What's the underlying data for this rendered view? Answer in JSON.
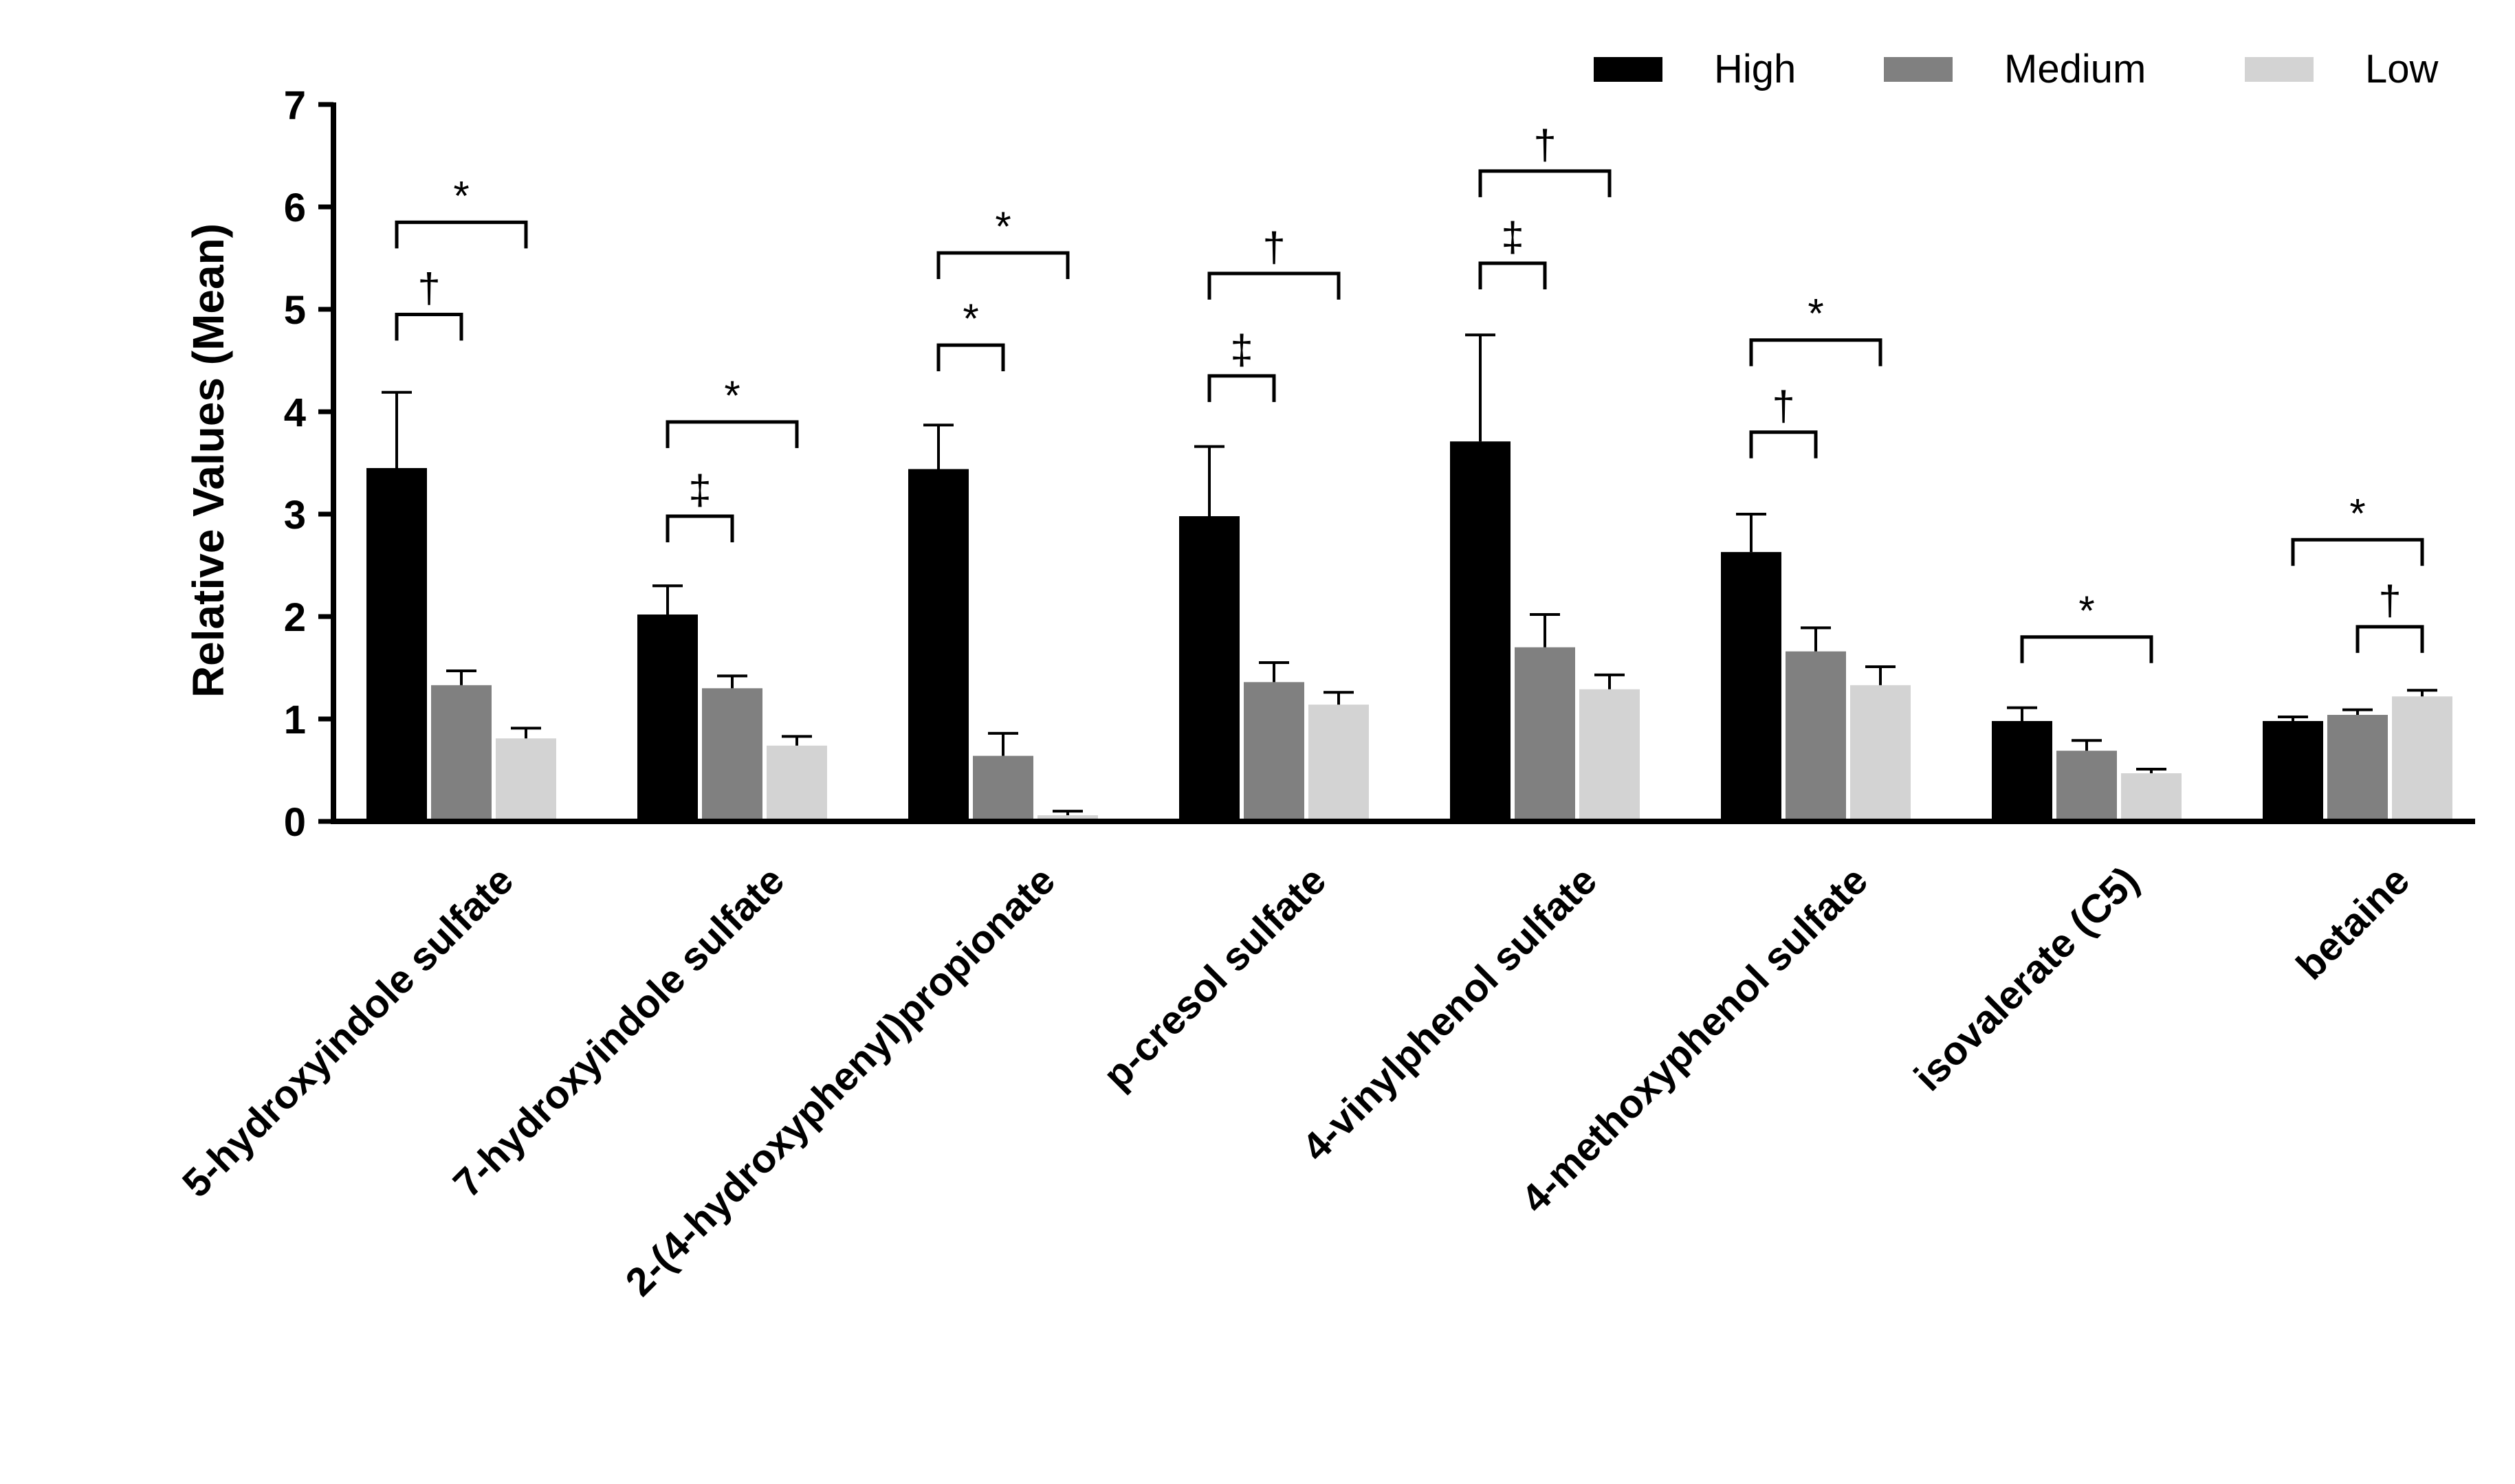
{
  "chart_data": {
    "type": "bar",
    "title": "",
    "xlabel": "",
    "ylabel": "Relative Values (Mean)",
    "ylim": [
      0,
      7
    ],
    "yticks": [
      0,
      1,
      2,
      3,
      4,
      5,
      6,
      7
    ],
    "legend_position": "top-right",
    "categories": [
      "5-hydroxyindole sulfate",
      "7-hydroxyindole sulfate",
      "2-(4-hydroxyphenyl)propionate",
      "p-cresol sulfate",
      "4-vinylphenol sulfate",
      "4-methoxyphenol sulfate",
      "isovalerate (C5)",
      "betaine"
    ],
    "series": [
      {
        "name": "High",
        "color": "#000000",
        "values": [
          3.45,
          2.02,
          3.44,
          2.98,
          3.71,
          2.63,
          0.98,
          0.98
        ],
        "errors": [
          0.74,
          0.28,
          0.43,
          0.68,
          1.04,
          0.37,
          0.13,
          0.04
        ]
      },
      {
        "name": "Medium",
        "color": "#808080",
        "values": [
          1.33,
          1.3,
          0.64,
          1.36,
          1.7,
          1.66,
          0.69,
          1.04
        ],
        "errors": [
          0.14,
          0.12,
          0.22,
          0.19,
          0.32,
          0.23,
          0.1,
          0.05
        ]
      },
      {
        "name": "Low",
        "color": "#d3d3d3",
        "values": [
          0.81,
          0.74,
          0.06,
          1.14,
          1.29,
          1.33,
          0.47,
          1.22
        ],
        "errors": [
          0.1,
          0.09,
          0.04,
          0.12,
          0.14,
          0.18,
          0.04,
          0.06
        ]
      }
    ],
    "annotations": [
      {
        "category": 0,
        "from": 0,
        "to": 1,
        "level": 4.95,
        "label": "†"
      },
      {
        "category": 0,
        "from": 0,
        "to": 2,
        "level": 5.85,
        "label": "*"
      },
      {
        "category": 1,
        "from": 0,
        "to": 1,
        "level": 2.98,
        "label": "‡"
      },
      {
        "category": 1,
        "from": 0,
        "to": 2,
        "level": 3.9,
        "label": "*"
      },
      {
        "category": 2,
        "from": 0,
        "to": 1,
        "level": 4.65,
        "label": "*"
      },
      {
        "category": 2,
        "from": 0,
        "to": 2,
        "level": 5.55,
        "label": "*"
      },
      {
        "category": 3,
        "from": 0,
        "to": 1,
        "level": 4.35,
        "label": "‡"
      },
      {
        "category": 3,
        "from": 0,
        "to": 2,
        "level": 5.35,
        "label": "†"
      },
      {
        "category": 4,
        "from": 0,
        "to": 1,
        "level": 5.45,
        "label": "‡"
      },
      {
        "category": 4,
        "from": 0,
        "to": 2,
        "level": 6.35,
        "label": "†"
      },
      {
        "category": 5,
        "from": 0,
        "to": 1,
        "level": 3.8,
        "label": "†"
      },
      {
        "category": 5,
        "from": 0,
        "to": 2,
        "level": 4.7,
        "label": "*"
      },
      {
        "category": 6,
        "from": 0,
        "to": 2,
        "level": 1.8,
        "label": "*"
      },
      {
        "category": 7,
        "from": 1,
        "to": 2,
        "level": 1.9,
        "label": "†"
      },
      {
        "category": 7,
        "from": 0,
        "to": 2,
        "level": 2.75,
        "label": "*"
      }
    ]
  }
}
